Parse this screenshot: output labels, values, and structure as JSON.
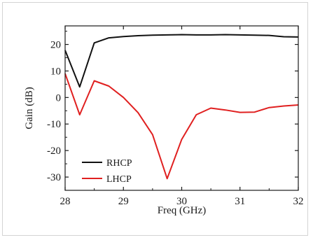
{
  "chart_data": {
    "type": "line",
    "title": "",
    "xlabel": "Freq (GHz)",
    "ylabel": "Gain (dB)",
    "xlim": [
      28,
      32
    ],
    "ylim": [
      -35,
      27
    ],
    "x_ticks": [
      28,
      29,
      30,
      31,
      32
    ],
    "y_ticks": [
      20,
      10,
      0,
      -10,
      -20,
      -30
    ],
    "legend_position": "bottom-left",
    "grid": false,
    "series": [
      {
        "name": "RHCP",
        "color": "#111111",
        "x": [
          28,
          28.25,
          28.5,
          28.75,
          29,
          29.25,
          29.5,
          29.75,
          30,
          30.25,
          30.5,
          30.75,
          31,
          31.25,
          31.5,
          31.75,
          32
        ],
        "y": [
          17.8,
          4.0,
          20.6,
          22.5,
          23.0,
          23.3,
          23.5,
          23.6,
          23.7,
          23.6,
          23.6,
          23.7,
          23.6,
          23.5,
          23.4,
          22.9,
          22.8
        ]
      },
      {
        "name": "LHCP",
        "color": "#e02020",
        "x": [
          28,
          28.25,
          28.5,
          28.75,
          29,
          29.25,
          29.5,
          29.75,
          30,
          30.25,
          30.5,
          30.75,
          31,
          31.25,
          31.5,
          31.75,
          32
        ],
        "y": [
          9.0,
          -6.5,
          6.3,
          4.3,
          0.0,
          -5.7,
          -14.0,
          -30.6,
          -15.8,
          -6.5,
          -4.0,
          -4.7,
          -5.6,
          -5.5,
          -3.8,
          -3.2,
          -2.8
        ]
      }
    ]
  }
}
